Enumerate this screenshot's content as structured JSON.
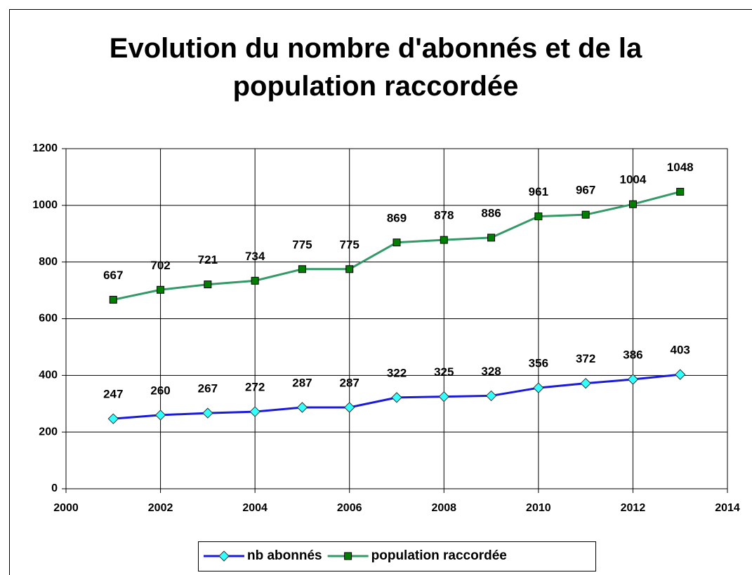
{
  "chart_data": {
    "type": "line",
    "title": "Evolution du nombre d'abonnés et de la population raccordée",
    "x": [
      2001,
      2002,
      2003,
      2004,
      2005,
      2006,
      2007,
      2008,
      2009,
      2010,
      2011,
      2012,
      2013
    ],
    "series": [
      {
        "name": "nb abonnés",
        "color": "#1a1adc",
        "marker": "diamond",
        "marker_color": "#33ffff",
        "values": [
          247,
          260,
          267,
          272,
          287,
          287,
          322,
          325,
          328,
          356,
          372,
          386,
          403
        ]
      },
      {
        "name": "population raccordée",
        "color": "#339966",
        "marker": "square",
        "marker_color": "#008000",
        "values": [
          667,
          702,
          721,
          734,
          775,
          775,
          869,
          878,
          886,
          961,
          967,
          1004,
          1048
        ]
      }
    ],
    "xlim": [
      2000,
      2014
    ],
    "xticks": [
      2000,
      2002,
      2004,
      2006,
      2008,
      2010,
      2012,
      2014
    ],
    "ylim": [
      0,
      1200
    ],
    "yticks": [
      0,
      200,
      400,
      600,
      800,
      1000,
      1200
    ],
    "grid": true,
    "legend": "bottom"
  }
}
